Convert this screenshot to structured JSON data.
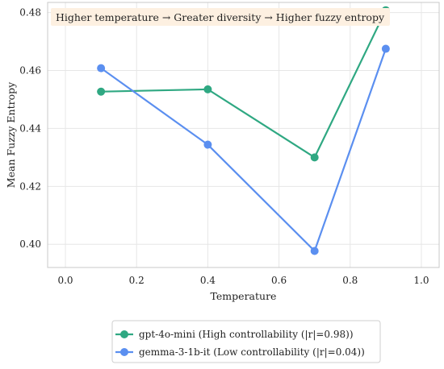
{
  "chart_data": {
    "type": "line",
    "xlabel": "Temperature",
    "ylabel": "Mean Fuzzy Entropy",
    "xlim": [
      -0.05,
      1.05
    ],
    "ylim": [
      0.392,
      0.4835
    ],
    "xticks": [
      0.0,
      0.2,
      0.4,
      0.6,
      0.8,
      1.0
    ],
    "xtick_labels": [
      "0.0",
      "0.2",
      "0.4",
      "0.6",
      "0.8",
      "1.0"
    ],
    "yticks": [
      0.4,
      0.42,
      0.44,
      0.46,
      0.48
    ],
    "ytick_labels": [
      "0.40",
      "0.42",
      "0.44",
      "0.46",
      "0.48"
    ],
    "grid": true,
    "legend_position": "bottom-center, outside",
    "annotation": "Higher temperature → Greater diversity → Higher fuzzy entropy",
    "annotation_color": "#fdf0e1",
    "series": [
      {
        "name": "gpt-4o-mini (High controllability (|r|=0.98))",
        "color": "#2fa882",
        "x": [
          0.1,
          0.4,
          0.7,
          0.9
        ],
        "y": [
          0.4527,
          0.4535,
          0.43,
          0.4808
        ]
      },
      {
        "name": "gemma-3-1b-it (Low controllability (|r|=0.04))",
        "color": "#5b8ff0",
        "x": [
          0.1,
          0.4,
          0.7,
          0.9
        ],
        "y": [
          0.4608,
          0.4344,
          0.3977,
          0.4675
        ]
      }
    ]
  }
}
